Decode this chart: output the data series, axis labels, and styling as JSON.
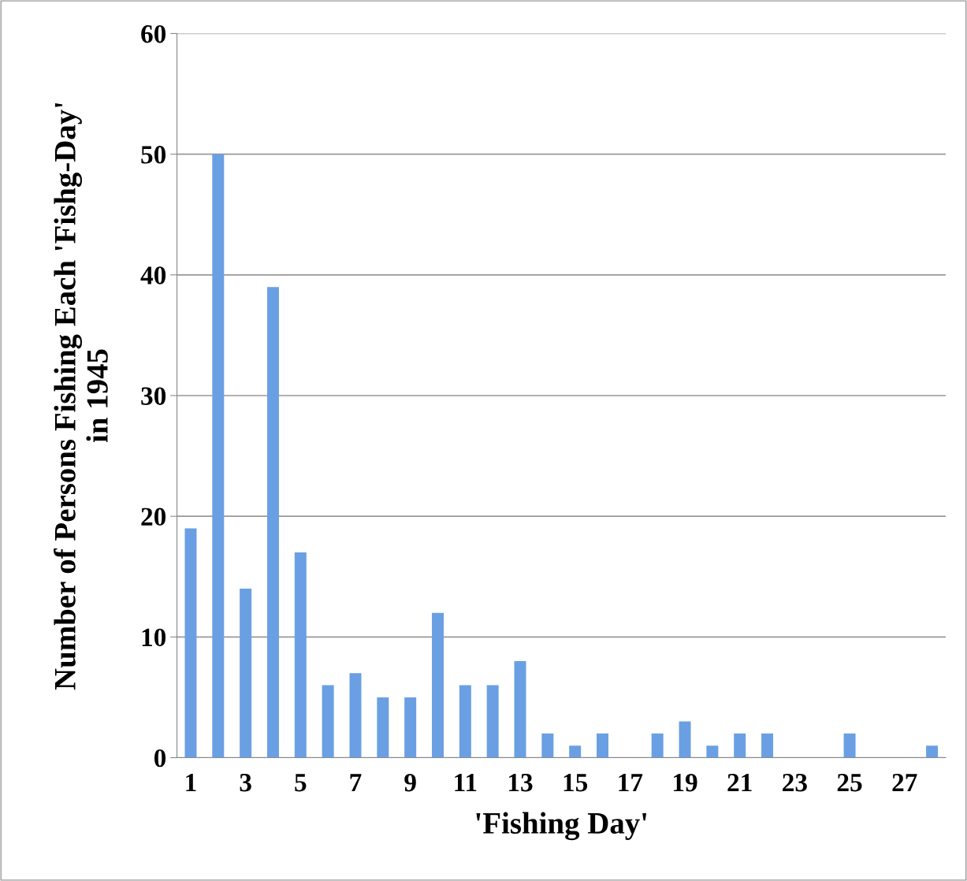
{
  "chart_data": {
    "type": "bar",
    "xlabel": "'Fishing Day'",
    "ylabel": "Number of Persons Fishing Each 'Fishg-Day'\nin 1945",
    "categories": [
      "1",
      null,
      "3",
      null,
      "5",
      null,
      "7",
      null,
      "9",
      null,
      "11",
      null,
      "13",
      null,
      "15",
      null,
      "17",
      null,
      "19",
      null,
      "21",
      null,
      "23",
      null,
      "25",
      null,
      "27",
      null
    ],
    "values": [
      19,
      50,
      14,
      39,
      17,
      6,
      7,
      5,
      5,
      12,
      6,
      6,
      8,
      2,
      1,
      2,
      0,
      2,
      3,
      1,
      2,
      2,
      0,
      0,
      2,
      0,
      0,
      1
    ],
    "color": "#6a9fe3",
    "ylim": [
      0,
      60
    ],
    "yticks": [
      0,
      10,
      20,
      30,
      40,
      50,
      60
    ],
    "grid": "y",
    "legend": false
  }
}
